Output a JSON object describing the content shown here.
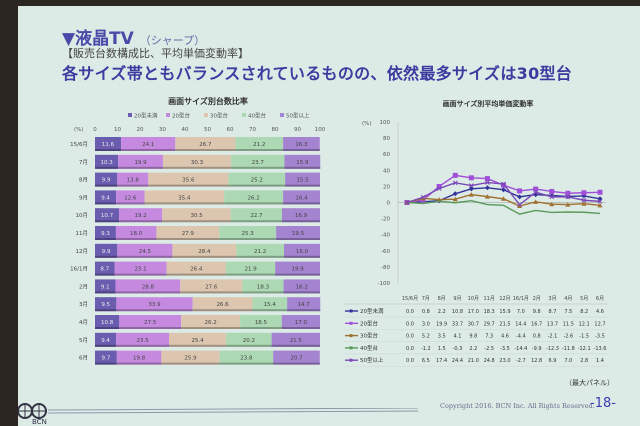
{
  "slide": {
    "heading": "▼液晶TV",
    "maker": "（シャープ）",
    "subheading": "【販売台数構成比、平均単価変動率】",
    "headline": "各サイズ帯ともバランスされているものの、依然最多サイズは30型台",
    "unit_note": "（最大パネル）",
    "copyright": "Copyright 2016. BCN Inc. All Rights Reserved.",
    "page_number": "-18-",
    "logo_text": "BCN"
  },
  "chart_data": [
    {
      "type": "bar",
      "stacked": true,
      "orientation": "horizontal",
      "title": "画面サイズ別台数比率",
      "xlabel": "(%)",
      "xlim": [
        0,
        100
      ],
      "xticks": [
        "0",
        "10",
        "20",
        "30",
        "40",
        "50",
        "60",
        "70",
        "80",
        "90",
        "100"
      ],
      "categories": [
        "15/6月",
        "7月",
        "8月",
        "9月",
        "10月",
        "11月",
        "12月",
        "16/1月",
        "2月",
        "3月",
        "4月",
        "5月",
        "6月"
      ],
      "series": [
        {
          "name": "20型未満",
          "color": "#6a5cae",
          "values": [
            11.6,
            10.3,
            9.9,
            9.4,
            10.7,
            9.3,
            9.9,
            8.7,
            9.1,
            9.5,
            10.8,
            9.4,
            9.7
          ]
        },
        {
          "name": "20型台",
          "color": "#c58ae0",
          "values": [
            24.1,
            19.9,
            13.8,
            12.6,
            19.2,
            18.0,
            24.5,
            23.1,
            28.8,
            33.9,
            27.5,
            23.5,
            19.8
          ]
        },
        {
          "name": "30型台",
          "color": "#dcc6b0",
          "values": [
            26.7,
            30.3,
            35.6,
            35.4,
            30.5,
            27.9,
            28.4,
            26.4,
            27.6,
            26.6,
            26.2,
            25.4,
            25.9
          ]
        },
        {
          "name": "40型台",
          "color": "#acd9b4",
          "values": [
            21.2,
            23.7,
            25.2,
            26.2,
            22.7,
            25.3,
            21.2,
            21.9,
            18.3,
            15.4,
            18.5,
            20.2,
            23.8
          ]
        },
        {
          "name": "50型以上",
          "color": "#a483d0",
          "values": [
            16.3,
            15.9,
            15.5,
            16.4,
            16.9,
            19.5,
            16.0,
            19.9,
            16.2,
            14.7,
            17.0,
            21.5,
            20.7
          ]
        }
      ]
    },
    {
      "type": "line",
      "title": "画面サイズ別平均単価変動率",
      "ylabel": "(%)",
      "ylim": [
        -100,
        100
      ],
      "yticks": [
        "100",
        "80",
        "60",
        "40",
        "20",
        "0",
        "-20",
        "-40",
        "-60",
        "-80",
        "-100"
      ],
      "categories": [
        "15/6月",
        "7月",
        "8月",
        "9月",
        "10月",
        "11月",
        "12月",
        "16/1月",
        "2月",
        "3月",
        "4月",
        "5月",
        "6月"
      ],
      "series": [
        {
          "name": "20型未満",
          "color": "#34349a",
          "marker": "diamond",
          "values": [
            0.0,
            0.8,
            2.2,
            10.8,
            17.0,
            18.3,
            15.9,
            7.0,
            9.8,
            8.7,
            7.5,
            8.2,
            4.6
          ]
        },
        {
          "name": "20型台",
          "color": "#a050d8",
          "marker": "square",
          "values": [
            0.0,
            3.0,
            19.9,
            33.7,
            30.7,
            29.7,
            21.5,
            14.4,
            16.7,
            13.7,
            11.5,
            12.1,
            12.7
          ]
        },
        {
          "name": "30型台",
          "color": "#a07030",
          "marker": "triangle",
          "values": [
            0.0,
            5.2,
            3.5,
            4.1,
            9.8,
            7.3,
            4.6,
            -4.4,
            0.8,
            -2.1,
            -2.6,
            -1.5,
            -3.5
          ]
        },
        {
          "name": "40型台",
          "color": "#5a9a5a",
          "marker": "none",
          "values": [
            0.0,
            -1.2,
            1.5,
            -0.3,
            2.2,
            -2.5,
            -3.5,
            -14.4,
            -9.9,
            -12.3,
            -11.8,
            -12.1,
            -13.6
          ]
        },
        {
          "name": "50型以上",
          "color": "#7a48b8",
          "marker": "cross",
          "values": [
            0.0,
            6.5,
            17.4,
            24.4,
            21.0,
            24.8,
            23.0,
            -2.7,
            12.8,
            6.9,
            7.0,
            2.8,
            1.4
          ]
        }
      ]
    }
  ]
}
